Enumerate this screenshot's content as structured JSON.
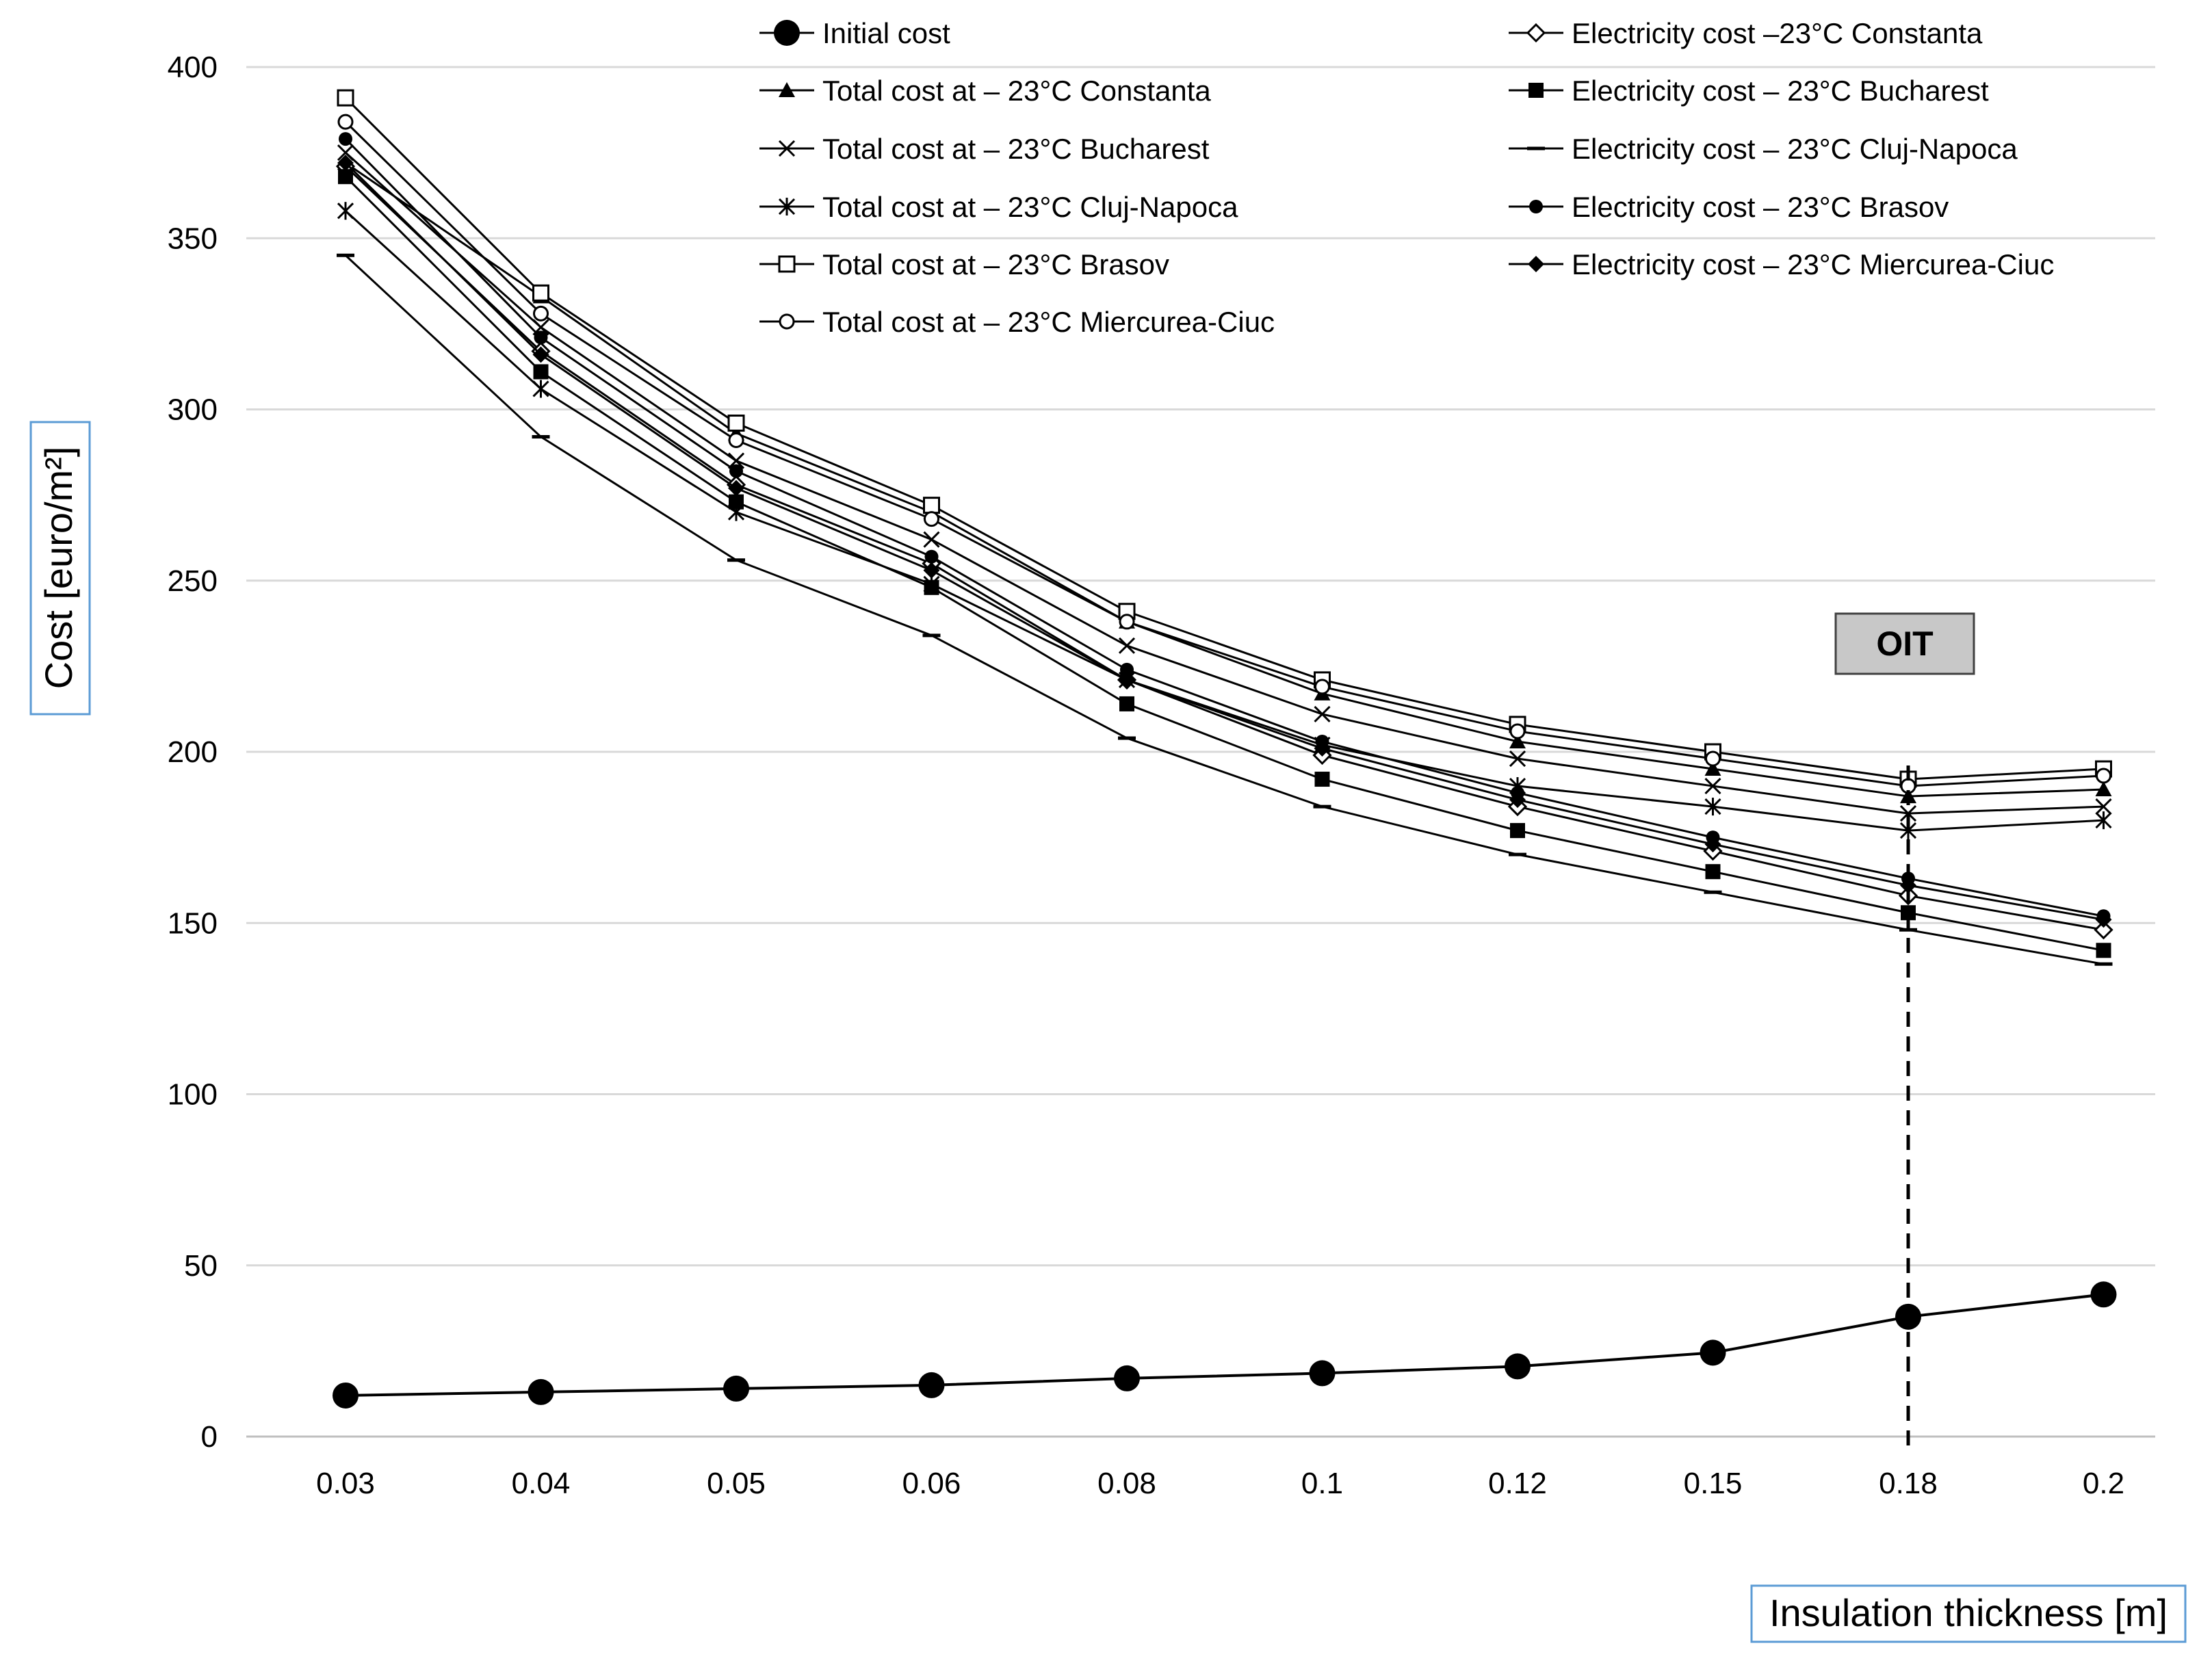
{
  "chart_data": {
    "type": "line",
    "title": "",
    "xlabel": "Insulation thickness [m]",
    "ylabel": "Cost  [euro/m²]",
    "ylim": [
      0,
      400
    ],
    "yticks": [
      0,
      50,
      100,
      150,
      200,
      250,
      300,
      350,
      400
    ],
    "grid": true,
    "legend_position": "top",
    "categories": [
      "0.03",
      "0.04",
      "0.05",
      "0.06",
      "0.08",
      "0.1",
      "0.12",
      "0.15",
      "0.18",
      "0.2"
    ],
    "series": [
      {
        "name": "Initial cost",
        "marker": "circle-filled-large",
        "values": [
          12,
          13,
          14,
          15,
          17,
          18.5,
          20.5,
          24.5,
          35,
          41.5
        ]
      },
      {
        "name": "Total cost at – 23°C Constanta",
        "marker": "triangle-filled",
        "values": [
          372,
          333,
          293,
          270,
          238,
          217,
          203,
          195,
          187,
          189
        ]
      },
      {
        "name": "Total cost at – 23°C Bucharest",
        "marker": "x",
        "values": [
          375,
          324,
          285,
          262,
          231,
          211,
          198,
          190,
          182,
          184
        ]
      },
      {
        "name": "Total cost at – 23°C Cluj-Napoca",
        "marker": "asterisk",
        "values": [
          358,
          306,
          270,
          249,
          221,
          202,
          190,
          184,
          177,
          180
        ]
      },
      {
        "name": "Total cost at – 23°C Brasov",
        "marker": "square-open",
        "values": [
          391,
          334,
          296,
          272,
          241,
          221,
          208,
          200,
          192,
          195
        ]
      },
      {
        "name": "Total cost at – 23°C Miercurea-Ciuc",
        "marker": "circle-open",
        "values": [
          384,
          328,
          291,
          268,
          238,
          219,
          206,
          198,
          190,
          193
        ]
      },
      {
        "name": "Electricity cost –23°C Constanta",
        "marker": "diamond-open",
        "values": [
          371,
          317,
          278,
          255,
          221,
          199,
          184,
          171,
          158,
          148
        ]
      },
      {
        "name": "Electricity cost – 23°C Bucharest",
        "marker": "square-filled",
        "values": [
          368,
          311,
          273,
          248,
          214,
          192,
          177,
          165,
          153,
          142
        ]
      },
      {
        "name": "Electricity cost – 23°C Cluj-Napoca",
        "marker": "dash",
        "values": [
          345,
          292,
          256,
          234,
          204,
          184,
          170,
          159,
          148,
          138
        ]
      },
      {
        "name": "Electricity cost – 23°C Brasov",
        "marker": "circle-filled",
        "values": [
          379,
          321,
          282,
          257,
          224,
          203,
          188,
          175,
          163,
          152
        ]
      },
      {
        "name": "Electricity cost – 23°C Miercurea-Ciuc",
        "marker": "diamond-filled",
        "values": [
          372,
          316,
          277,
          253,
          221,
          201,
          186,
          173,
          161,
          151
        ]
      }
    ],
    "annotations": [
      {
        "type": "vertical-dashed-line",
        "x": "0.18"
      },
      {
        "type": "label-box",
        "text": "OIT"
      }
    ]
  },
  "colors": {
    "line": "#000000",
    "grid": "#d9d9d9",
    "axis_title_border": "#5b9bd5",
    "oit_box_fill": "#c8c8c8",
    "background": "#ffffff"
  }
}
